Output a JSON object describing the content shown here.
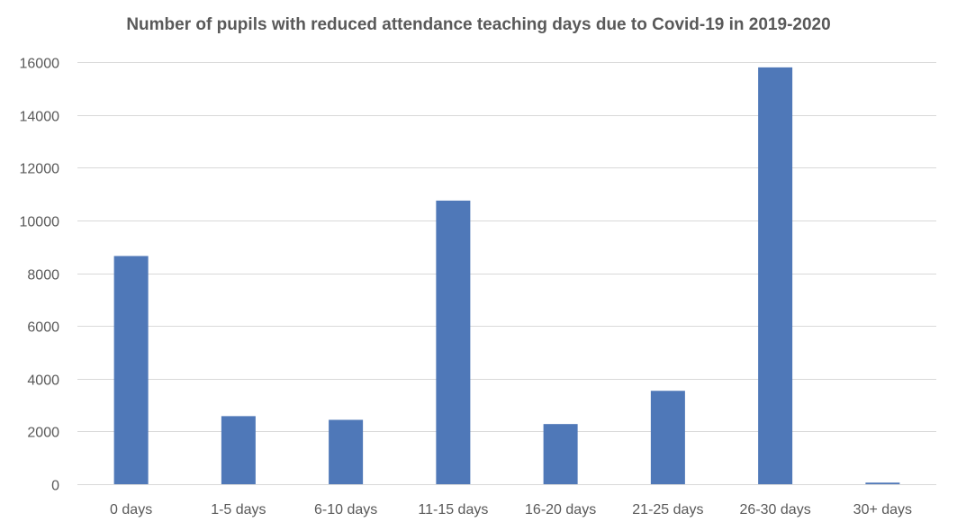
{
  "chart_data": {
    "type": "bar",
    "title": "Number of pupils with reduced attendance teaching days due to Covid-19 in 2019-2020",
    "xlabel": "",
    "ylabel": "",
    "categories": [
      "0 days",
      "1-5 days",
      "6-10 days",
      "11-15 days",
      "16-20 days",
      "21-25 days",
      "26-30 days",
      "30+ days"
    ],
    "values": [
      8650,
      2580,
      2440,
      10750,
      2280,
      3540,
      15800,
      60
    ],
    "ylim": [
      0,
      16000
    ],
    "yticks": [
      0,
      2000,
      4000,
      6000,
      8000,
      10000,
      12000,
      14000,
      16000
    ],
    "grid": true,
    "legend": "none",
    "bar_color": "#4f78b8"
  }
}
